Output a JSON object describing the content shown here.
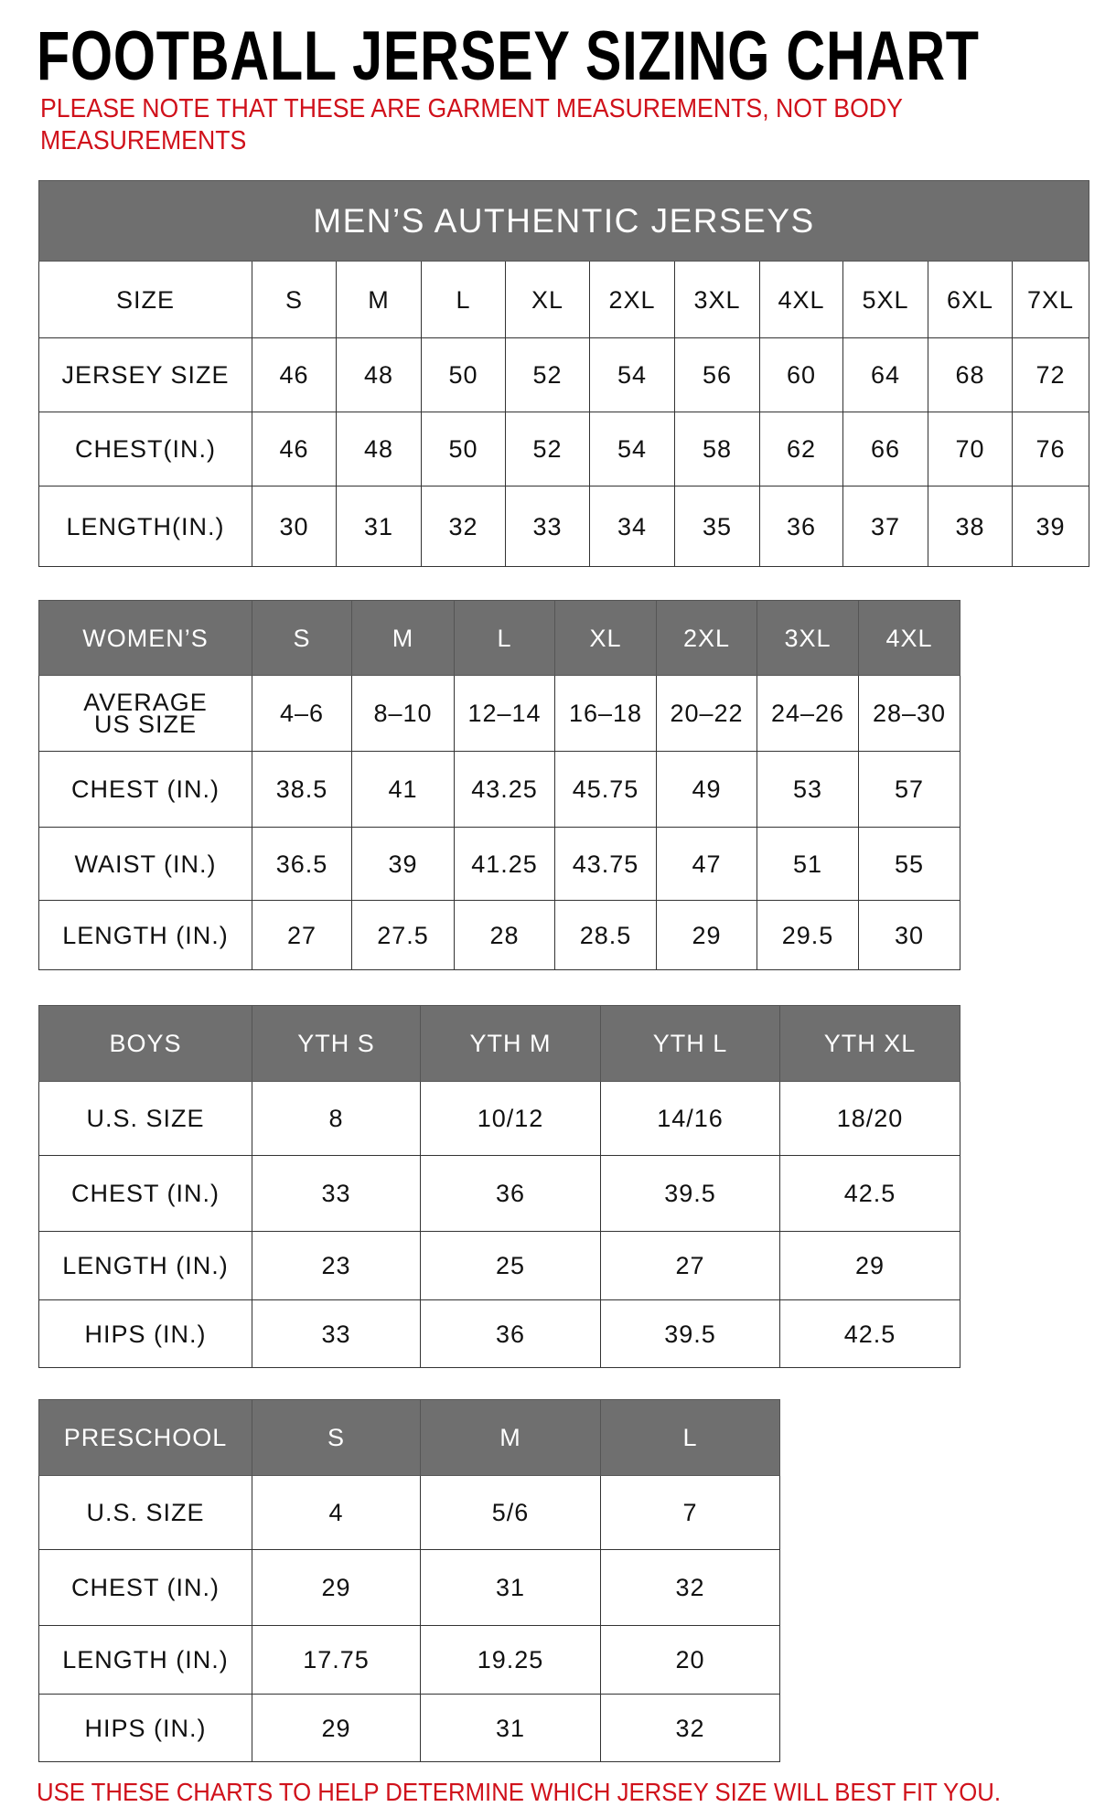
{
  "title": "FOOTBALL JERSEY SIZING CHART",
  "note": "PLEASE NOTE THAT THESE ARE GARMENT MEASUREMENTS, NOT BODY MEASUREMENTS",
  "footer": "USE THESE CHARTS TO HELP DETERMINE WHICH JERSEY SIZE WILL BEST FIT YOU.",
  "colors": {
    "header_bg": "#6f6f6f",
    "note_red": "#d0111b"
  },
  "tables": [
    {
      "id": "mens",
      "banner": "MEN’S AUTHENTIC JERSEYS",
      "header": [
        "SIZE",
        "S",
        "M",
        "L",
        "XL",
        "2XL",
        "3XL",
        "4XL",
        "5XL",
        "6XL",
        "7XL"
      ],
      "header_style": "plain",
      "rows": [
        [
          "JERSEY SIZE",
          "46",
          "48",
          "50",
          "52",
          "54",
          "56",
          "60",
          "64",
          "68",
          "72"
        ],
        [
          "CHEST(IN.)",
          "46",
          "48",
          "50",
          "52",
          "54",
          "58",
          "62",
          "66",
          "70",
          "76"
        ],
        [
          "LENGTH(IN.)",
          "30",
          "31",
          "32",
          "33",
          "34",
          "35",
          "36",
          "37",
          "38",
          "39"
        ]
      ]
    },
    {
      "id": "womens",
      "header": [
        "WOMEN’S",
        "S",
        "M",
        "L",
        "XL",
        "2XL",
        "3XL",
        "4XL"
      ],
      "header_style": "gray",
      "rows": [
        [
          "AVERAGE US SIZE",
          "4–6",
          "8–10",
          "12–14",
          "16–18",
          "20–22",
          "24–26",
          "28–30"
        ],
        [
          "CHEST (IN.)",
          "38.5",
          "41",
          "43.25",
          "45.75",
          "49",
          "53",
          "57"
        ],
        [
          "WAIST (IN.)",
          "36.5",
          "39",
          "41.25",
          "43.75",
          "47",
          "51",
          "55"
        ],
        [
          "LENGTH (IN.)",
          "27",
          "27.5",
          "28",
          "28.5",
          "29",
          "29.5",
          "30"
        ]
      ]
    },
    {
      "id": "boys",
      "header": [
        "BOYS",
        "YTH S",
        "YTH M",
        "YTH L",
        "YTH XL"
      ],
      "header_style": "gray",
      "rows": [
        [
          "U.S. SIZE",
          "8",
          "10/12",
          "14/16",
          "18/20"
        ],
        [
          "CHEST (IN.)",
          "33",
          "36",
          "39.5",
          "42.5"
        ],
        [
          "LENGTH (IN.)",
          "23",
          "25",
          "27",
          "29"
        ],
        [
          "HIPS (IN.)",
          "33",
          "36",
          "39.5",
          "42.5"
        ]
      ]
    },
    {
      "id": "preschool",
      "header": [
        "PRESCHOOL",
        "S",
        "M",
        "L"
      ],
      "header_style": "gray",
      "rows": [
        [
          "U.S. SIZE",
          "4",
          "5/6",
          "7"
        ],
        [
          "CHEST (IN.)",
          "29",
          "31",
          "32"
        ],
        [
          "LENGTH (IN.)",
          "17.75",
          "19.25",
          "20"
        ],
        [
          "HIPS (IN.)",
          "29",
          "31",
          "32"
        ]
      ]
    }
  ]
}
